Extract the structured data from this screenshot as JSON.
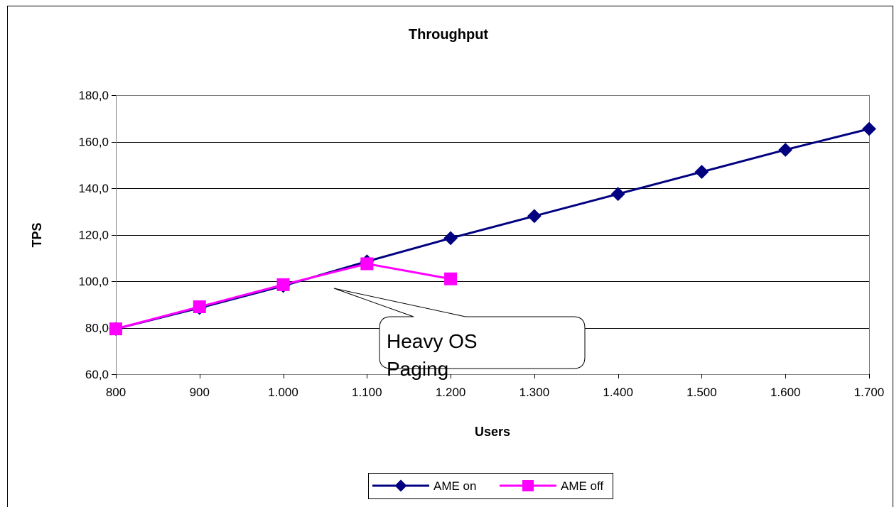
{
  "chart_data": {
    "type": "line",
    "title": "Throughput",
    "xlabel": "Users",
    "ylabel": "TPS",
    "categories": [
      "800",
      "900",
      "1.000",
      "1.100",
      "1.200",
      "1.300",
      "1.400",
      "1.500",
      "1.600",
      "1.700"
    ],
    "x": [
      800,
      900,
      1000,
      1100,
      1200,
      1300,
      1400,
      1500,
      1600,
      1700
    ],
    "ylim": [
      60,
      180
    ],
    "yticks": [
      60,
      80,
      100,
      120,
      140,
      160,
      180
    ],
    "ytick_labels": [
      "60,0",
      "80,0",
      "100,0",
      "120,0",
      "140,0",
      "160,0",
      "180,0"
    ],
    "grid": "horizontal",
    "legend": "bottom-center",
    "series": [
      {
        "name": "AME on",
        "color": "#000080",
        "marker": "diamond",
        "x": [
          800,
          900,
          1000,
          1100,
          1200,
          1300,
          1400,
          1500,
          1600,
          1700
        ],
        "values": [
          79.5,
          88.5,
          98.0,
          108.5,
          118.5,
          128.0,
          137.5,
          147.0,
          156.5,
          165.5
        ]
      },
      {
        "name": "AME off",
        "color": "#FF00FF",
        "marker": "square",
        "x": [
          800,
          900,
          1000,
          1100,
          1200
        ],
        "values": [
          79.5,
          89.0,
          98.5,
          107.5,
          101.0
        ]
      }
    ],
    "annotations": [
      {
        "text_lines": [
          "Heavy OS",
          "Paging"
        ],
        "points_to": {
          "x": 1120,
          "y": 100
        }
      }
    ]
  }
}
